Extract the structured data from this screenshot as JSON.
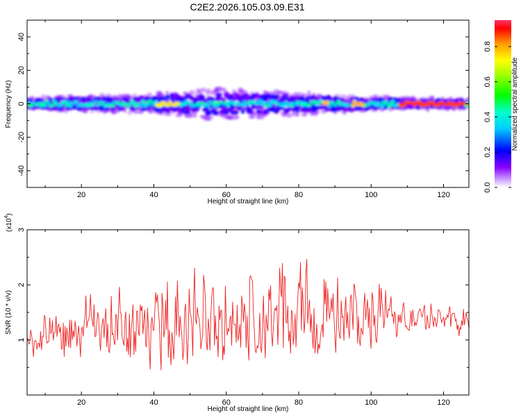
{
  "title": "C2E2.2026.105.03.09.E31",
  "colors": {
    "snr_line": "#ee2222",
    "axis": "#000000"
  },
  "chart_data": [
    {
      "type": "heatmap",
      "title": "C2E2.2026.105.03.09.E31",
      "xlabel": "Height of straight line (km)",
      "ylabel": "Frequency (Hz)",
      "xlim": [
        5,
        127
      ],
      "ylim": [
        -50,
        50
      ],
      "xticks": [
        20,
        40,
        60,
        80,
        100,
        120
      ],
      "yticks": [
        -40,
        -20,
        0,
        20,
        40
      ],
      "colorbar": {
        "label": "Normalized spectral amplitude",
        "range": [
          0,
          0.95
        ],
        "ticks": [
          "0.0",
          "0.2",
          "0.4",
          "0.6",
          "0.8"
        ],
        "tick_values": [
          0,
          0.2,
          0.4,
          0.6,
          0.8
        ]
      },
      "band_center_hz": 0,
      "band_halfwidth_hz_by_height": [
        [
          5,
          3
        ],
        [
          20,
          4
        ],
        [
          40,
          5
        ],
        [
          55,
          8
        ],
        [
          65,
          7
        ],
        [
          80,
          6
        ],
        [
          95,
          4
        ],
        [
          110,
          3
        ],
        [
          127,
          2.5
        ]
      ],
      "peak_amplitude_segments": [
        {
          "from_km": 41,
          "to_km": 47,
          "amplitude": 0.75
        },
        {
          "from_km": 87,
          "to_km": 88,
          "amplitude": 0.8
        },
        {
          "from_km": 95,
          "to_km": 98,
          "amplitude": 0.8
        },
        {
          "from_km": 108,
          "to_km": 126,
          "amplitude": 0.9
        }
      ]
    },
    {
      "type": "line",
      "xlabel": "Height of straight line (km)",
      "ylabel": "SNR (10 * v/v)",
      "y_scale_label": "(x10",
      "y_scale_exponent": "4",
      "y_scale_close": ")",
      "xlim": [
        5,
        127
      ],
      "ylim": [
        0,
        3
      ],
      "xticks": [
        20,
        40,
        60,
        80,
        100,
        120
      ],
      "yticks": [
        1,
        2,
        3
      ],
      "series": [
        {
          "name": "SNR",
          "sample_step_km": 0.25,
          "envelope_heights_km": [
            5,
            20,
            40,
            60,
            80,
            100,
            110,
            127
          ],
          "envelope_mean": [
            0.95,
            1.1,
            1.2,
            1.25,
            1.3,
            1.4,
            1.4,
            1.3
          ],
          "envelope_spread": [
            0.35,
            0.6,
            0.8,
            1.05,
            0.95,
            0.6,
            0.35,
            0.25
          ]
        }
      ]
    }
  ]
}
